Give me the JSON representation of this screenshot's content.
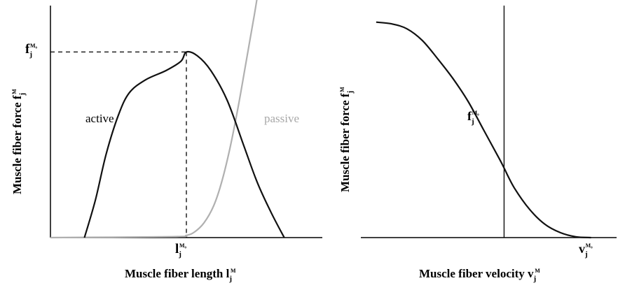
{
  "chart_data": [
    {
      "type": "line",
      "xlabel": {
        "text": "Muscle fiber length l",
        "sub": "j",
        "sup": "M"
      },
      "ylabel": {
        "text": "Muscle fiber force f",
        "sub": "j",
        "sup": "M"
      },
      "x_tick": {
        "base": "l",
        "sub": "j",
        "sup": "M₀"
      },
      "y_tick": {
        "base": "f",
        "sub": "j",
        "sup": "M₀"
      },
      "xlim": [
        0,
        2
      ],
      "ylim": [
        0,
        1.25
      ],
      "series": [
        {
          "name": "active",
          "color": "#111111",
          "points": [
            [
              0.25,
              0
            ],
            [
              0.33,
              0.2
            ],
            [
              0.41,
              0.45
            ],
            [
              0.5,
              0.66
            ],
            [
              0.58,
              0.78
            ],
            [
              0.7,
              0.85
            ],
            [
              0.85,
              0.9
            ],
            [
              0.96,
              0.95
            ],
            [
              1.0,
              1.0
            ],
            [
              1.08,
              0.98
            ],
            [
              1.18,
              0.9
            ],
            [
              1.3,
              0.74
            ],
            [
              1.42,
              0.5
            ],
            [
              1.52,
              0.3
            ],
            [
              1.62,
              0.14
            ],
            [
              1.72,
              0.0
            ]
          ]
        },
        {
          "name": "passive",
          "color": "#b0b0b0",
          "points": [
            [
              0.0,
              0
            ],
            [
              0.9,
              0.005
            ],
            [
              1.0,
              0.012
            ],
            [
              1.06,
              0.03
            ],
            [
              1.13,
              0.08
            ],
            [
              1.2,
              0.17
            ],
            [
              1.26,
              0.3
            ],
            [
              1.32,
              0.48
            ],
            [
              1.38,
              0.7
            ],
            [
              1.44,
              0.95
            ],
            [
              1.5,
              1.2
            ],
            [
              1.54,
              1.38
            ]
          ]
        }
      ],
      "reference": {
        "x": 1.0,
        "y": 1.0,
        "style": "dashed"
      }
    },
    {
      "type": "line",
      "xlabel": {
        "text": "Muscle fiber velocity v",
        "sub": "j",
        "sup": "M"
      },
      "ylabel": {
        "text": "Muscle fiber force f",
        "sub": "j",
        "sup": "M"
      },
      "x_tick": {
        "base": "v",
        "sub": "j",
        "sup": "M₀"
      },
      "y_tick": {
        "base": "f",
        "sub": "j",
        "sup": "M₀"
      },
      "xlim": [
        -1.4,
        1.1
      ],
      "ylim": [
        0,
        1.4
      ],
      "series": [
        {
          "name": "",
          "color": "#111111",
          "points": [
            [
              -1.25,
              1.3
            ],
            [
              -1.1,
              1.29
            ],
            [
              -0.95,
              1.26
            ],
            [
              -0.8,
              1.19
            ],
            [
              -0.65,
              1.08
            ],
            [
              -0.5,
              0.96
            ],
            [
              -0.35,
              0.82
            ],
            [
              -0.2,
              0.65
            ],
            [
              -0.05,
              0.48
            ],
            [
              0.0,
              0.42
            ],
            [
              0.1,
              0.3
            ],
            [
              0.25,
              0.17
            ],
            [
              0.4,
              0.08
            ],
            [
              0.55,
              0.03
            ],
            [
              0.7,
              0.005
            ],
            [
              0.85,
              0.0
            ]
          ]
        }
      ],
      "reference": {
        "x": 0.0,
        "y": 0.42,
        "style": "solid"
      }
    }
  ],
  "annotations": {
    "active": "active",
    "passive": "passive"
  }
}
